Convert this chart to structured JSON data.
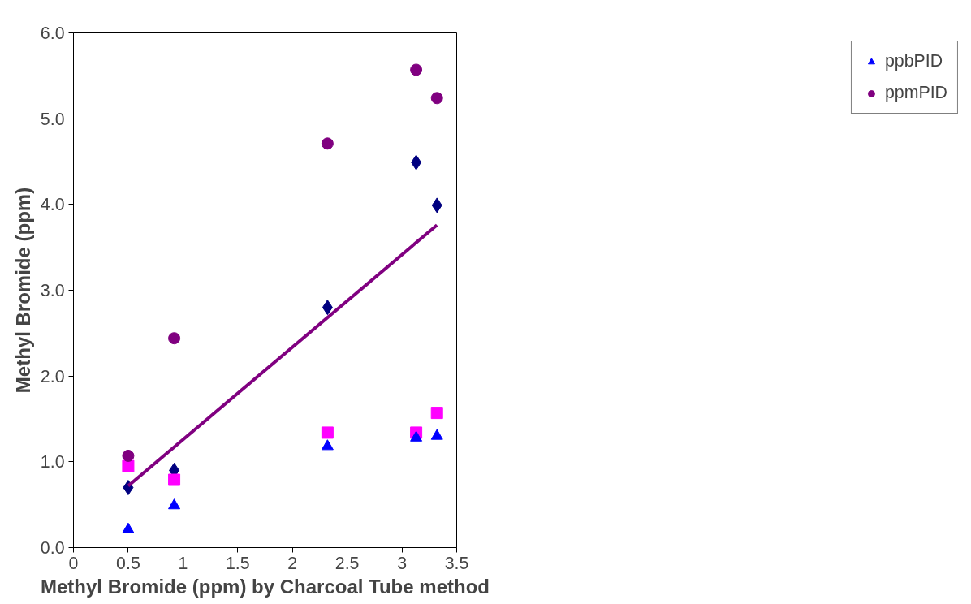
{
  "chart_data": {
    "type": "scatter",
    "xlabel": "Methyl Bromide (ppm) by Charcoal Tube method",
    "ylabel": "Methyl Bromide (ppm)",
    "x": [
      0.5,
      0.92,
      2.32,
      3.13,
      3.32
    ],
    "series": [
      {
        "color": "#000080",
        "marker": "diamond",
        "values": [
          0.7,
          0.9,
          2.8,
          4.49,
          3.99
        ]
      },
      {
        "color": "#ff00ff",
        "marker": "square",
        "values": [
          0.95,
          0.79,
          1.34,
          1.34,
          1.57
        ]
      },
      {
        "name": "ppbPID",
        "color": "#0000ff",
        "marker": "triangle",
        "values": [
          0.21,
          0.49,
          1.18,
          1.28,
          1.3
        ]
      },
      {
        "name": "ppmPID",
        "color": "#800080",
        "marker": "circle",
        "values": [
          1.07,
          2.44,
          4.71,
          5.57,
          5.24
        ]
      },
      {
        "type": "line",
        "color": "#800080",
        "marker": "none",
        "x": [
          0.5,
          3.32
        ],
        "values": [
          0.72,
          3.76
        ]
      }
    ],
    "xlim": [
      0,
      3.5
    ],
    "xticks": [
      0,
      0.5,
      1,
      1.5,
      2,
      2.5,
      3,
      3.5
    ],
    "ylim": [
      0,
      6
    ],
    "yticks": [
      {
        "value": 0,
        "label": "0.0"
      },
      {
        "value": 1,
        "label": "1.0"
      },
      {
        "value": 2,
        "label": "2.0"
      },
      {
        "value": 3,
        "label": "3.0"
      },
      {
        "value": 4,
        "label": "4.0"
      },
      {
        "value": 5,
        "label": "5.0"
      },
      {
        "value": 6,
        "label": "6.0"
      }
    ],
    "grid": false,
    "legend": "right"
  }
}
